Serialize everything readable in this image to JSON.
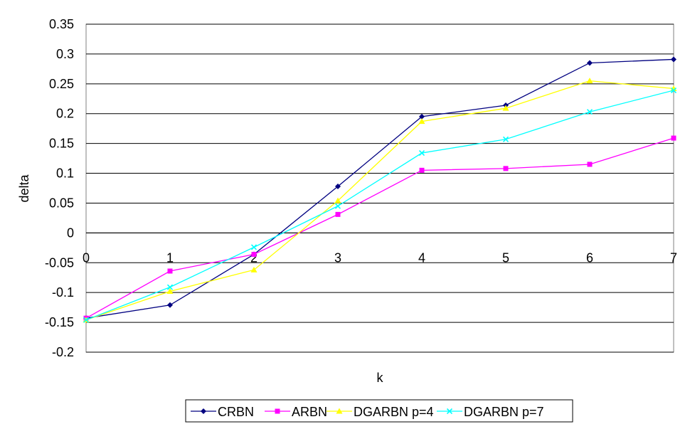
{
  "chart_data": {
    "type": "line",
    "title": "",
    "xlabel": "k",
    "ylabel": "delta",
    "x": [
      0,
      1,
      2,
      3,
      4,
      5,
      6,
      7
    ],
    "x_tick_labels": [
      "0",
      "1",
      "2",
      "3",
      "4",
      "5",
      "6",
      "7"
    ],
    "ylim": [
      -0.2,
      0.35
    ],
    "y_tick_labels": [
      "0.35",
      "0.3",
      "0.25",
      "0.2",
      "0.15",
      "0.1",
      "0.05",
      "0",
      "-0.05",
      "-0.1",
      "-0.15",
      "-0.2"
    ],
    "y_ticks": [
      0.35,
      0.3,
      0.25,
      0.2,
      0.15,
      0.1,
      0.05,
      0,
      -0.05,
      -0.1,
      -0.15,
      -0.2
    ],
    "grid": "horizontal",
    "legend_position": "bottom",
    "series": [
      {
        "name": "CRBN",
        "color": "#000080",
        "marker": "diamond",
        "values": [
          -0.143,
          -0.121,
          -0.036,
          0.078,
          0.195,
          0.214,
          0.285,
          0.291
        ]
      },
      {
        "name": "ARBN",
        "color": "#FF00FF",
        "marker": "square",
        "values": [
          -0.143,
          -0.064,
          -0.036,
          0.031,
          0.105,
          0.108,
          0.115,
          0.159
        ]
      },
      {
        "name": "DGARBN p=4",
        "color": "#FFFF00",
        "marker": "triangle",
        "values": [
          -0.146,
          -0.098,
          -0.062,
          0.054,
          0.187,
          0.209,
          0.255,
          0.242
        ]
      },
      {
        "name": "DGARBN p=7",
        "color": "#00FFFF",
        "marker": "x",
        "values": [
          -0.146,
          -0.091,
          -0.024,
          0.045,
          0.134,
          0.157,
          0.203,
          0.239
        ]
      }
    ]
  }
}
